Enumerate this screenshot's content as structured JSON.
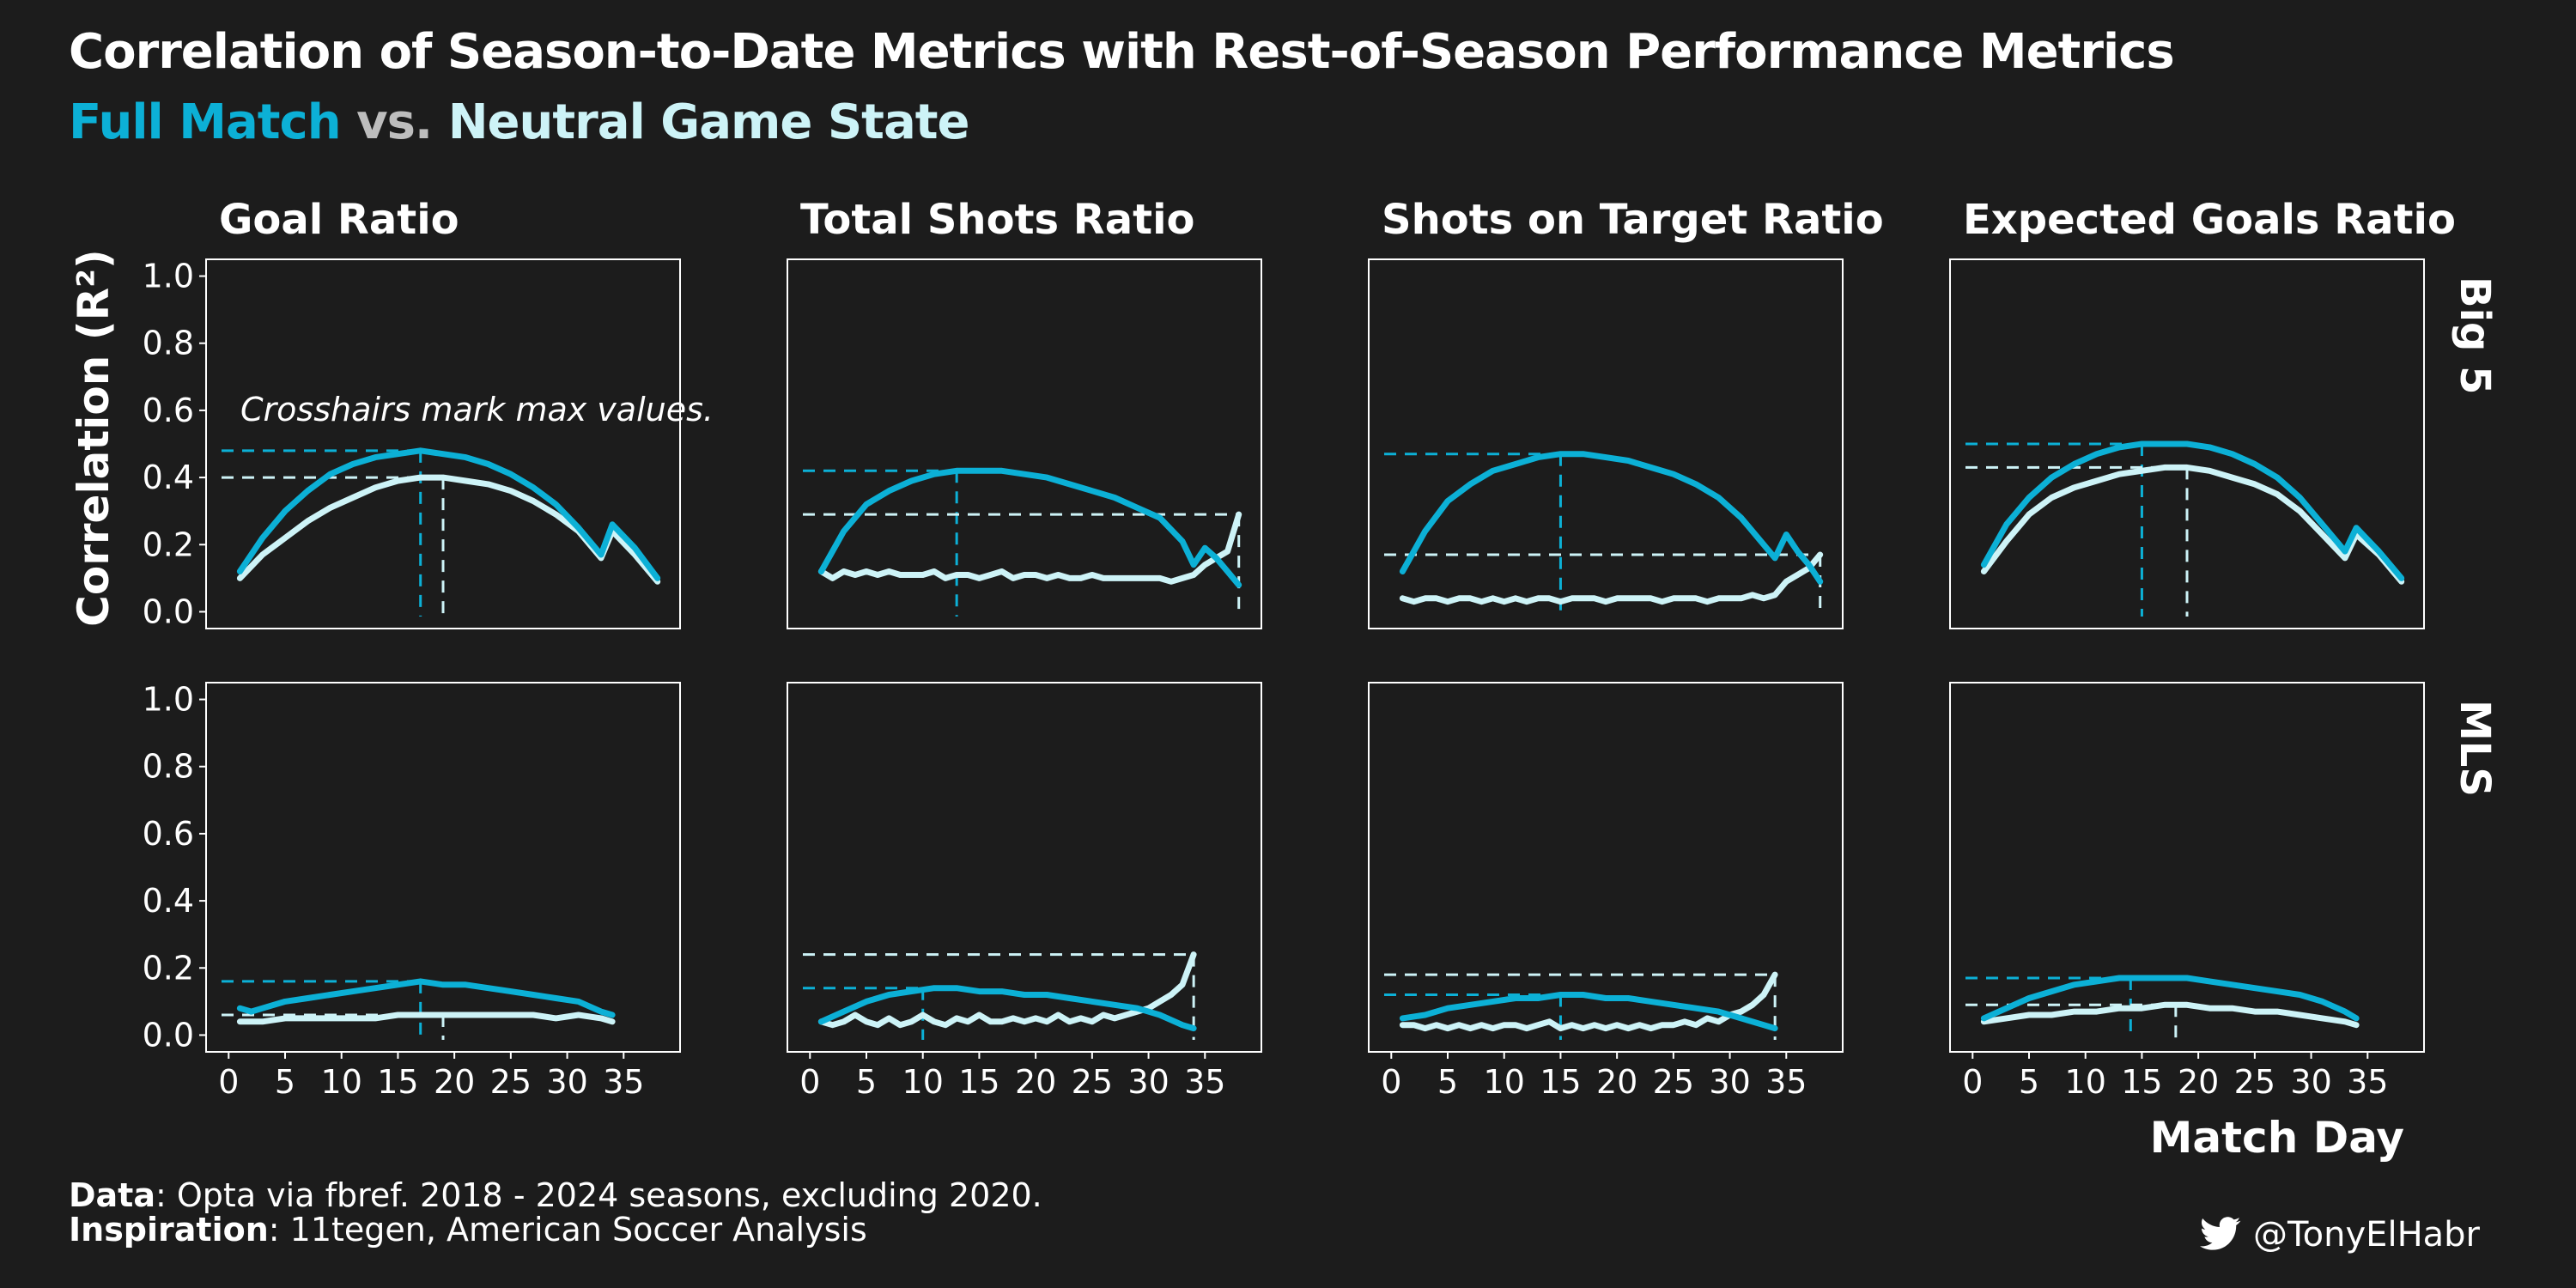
{
  "title": "Correlation of Season-to-Date Metrics with Rest-of-Season Performance Metrics",
  "subtitle": {
    "series_a": "Full Match",
    "vs": "vs.",
    "series_b": "Neutral Game State"
  },
  "footer": {
    "data_label": "Data",
    "data_text": ": Opta via fbref. 2018 - 2024 seasons, excluding 2020.",
    "inspiration_label": "Inspiration",
    "inspiration_text": ": 11tegen, American Soccer Analysis"
  },
  "handle": {
    "icon": "twitter-bird-icon",
    "text": "@TonyElHabr"
  },
  "colors": {
    "background": "#1c1c1c",
    "full_match": "#0cb0d6",
    "neutral": "#cdf3f7",
    "text": "#ffffff"
  },
  "chart_data": {
    "type": "line",
    "ylabel": "Correlation (R²)",
    "xlabel": "Match Day",
    "annotation": "Crosshairs mark max values.",
    "xlim": [
      -2,
      40
    ],
    "ylim": [
      -0.05,
      1.05
    ],
    "x_ticks": [
      0,
      5,
      10,
      15,
      20,
      25,
      30,
      35
    ],
    "x_tick_labels": [
      "0",
      "5",
      "10",
      "15",
      "20",
      "25",
      "30",
      "35"
    ],
    "y_ticks": [
      0.0,
      0.2,
      0.4,
      0.6,
      0.8,
      1.0
    ],
    "y_tick_labels": [
      "0.0",
      "0.2",
      "0.4",
      "0.6",
      "0.8",
      "1.0"
    ],
    "columns": [
      "Goal Ratio",
      "Total Shots Ratio",
      "Shots on Target Ratio",
      "Expected Goals Ratio"
    ],
    "rows": [
      "Big 5",
      "MLS"
    ],
    "panels": [
      {
        "row": "Big 5",
        "column": "Goal Ratio",
        "series": [
          {
            "name": "Full Match",
            "x": [
              1,
              3,
              5,
              7,
              9,
              11,
              13,
              15,
              17,
              19,
              21,
              23,
              25,
              27,
              29,
              31,
              33,
              34,
              36,
              38
            ],
            "y": [
              0.12,
              0.22,
              0.3,
              0.36,
              0.41,
              0.44,
              0.46,
              0.47,
              0.48,
              0.47,
              0.46,
              0.44,
              0.41,
              0.37,
              0.32,
              0.25,
              0.17,
              0.26,
              0.19,
              0.1
            ],
            "max": {
              "x": 17,
              "y": 0.48
            }
          },
          {
            "name": "Neutral Game State",
            "x": [
              1,
              3,
              5,
              7,
              9,
              11,
              13,
              15,
              17,
              19,
              21,
              23,
              25,
              27,
              29,
              31,
              33,
              34,
              36,
              38
            ],
            "y": [
              0.1,
              0.17,
              0.22,
              0.27,
              0.31,
              0.34,
              0.37,
              0.39,
              0.4,
              0.4,
              0.39,
              0.38,
              0.36,
              0.33,
              0.29,
              0.24,
              0.16,
              0.24,
              0.17,
              0.09
            ],
            "max": {
              "x": 19,
              "y": 0.4
            }
          }
        ]
      },
      {
        "row": "Big 5",
        "column": "Total Shots Ratio",
        "series": [
          {
            "name": "Full Match",
            "x": [
              1,
              3,
              5,
              7,
              9,
              11,
              13,
              15,
              17,
              19,
              21,
              23,
              25,
              27,
              29,
              31,
              33,
              34,
              35,
              36,
              37,
              38
            ],
            "y": [
              0.12,
              0.24,
              0.32,
              0.36,
              0.39,
              0.41,
              0.42,
              0.42,
              0.42,
              0.41,
              0.4,
              0.38,
              0.36,
              0.34,
              0.31,
              0.28,
              0.21,
              0.14,
              0.19,
              0.16,
              0.12,
              0.08
            ],
            "max": {
              "x": 13,
              "y": 0.42
            }
          },
          {
            "name": "Neutral Game State",
            "x": [
              1,
              2,
              3,
              4,
              5,
              6,
              7,
              8,
              9,
              10,
              11,
              12,
              13,
              14,
              15,
              16,
              17,
              18,
              19,
              20,
              21,
              22,
              23,
              24,
              25,
              26,
              27,
              28,
              29,
              30,
              31,
              32,
              33,
              34,
              35,
              36,
              37,
              38
            ],
            "y": [
              0.12,
              0.1,
              0.12,
              0.11,
              0.12,
              0.11,
              0.12,
              0.11,
              0.11,
              0.11,
              0.12,
              0.1,
              0.11,
              0.11,
              0.1,
              0.11,
              0.12,
              0.1,
              0.11,
              0.11,
              0.1,
              0.11,
              0.1,
              0.1,
              0.11,
              0.1,
              0.1,
              0.1,
              0.1,
              0.1,
              0.1,
              0.09,
              0.1,
              0.11,
              0.14,
              0.16,
              0.18,
              0.29
            ],
            "max": {
              "x": 38,
              "y": 0.29
            }
          }
        ]
      },
      {
        "row": "Big 5",
        "column": "Shots on Target Ratio",
        "series": [
          {
            "name": "Full Match",
            "x": [
              1,
              3,
              5,
              7,
              9,
              11,
              13,
              15,
              17,
              19,
              21,
              23,
              25,
              27,
              29,
              31,
              33,
              34,
              35,
              36,
              37,
              38
            ],
            "y": [
              0.12,
              0.24,
              0.33,
              0.38,
              0.42,
              0.44,
              0.46,
              0.47,
              0.47,
              0.46,
              0.45,
              0.43,
              0.41,
              0.38,
              0.34,
              0.28,
              0.2,
              0.16,
              0.23,
              0.18,
              0.14,
              0.09
            ],
            "max": {
              "x": 15,
              "y": 0.47
            }
          },
          {
            "name": "Neutral Game State",
            "x": [
              1,
              2,
              3,
              4,
              5,
              6,
              7,
              8,
              9,
              10,
              11,
              12,
              13,
              14,
              15,
              16,
              17,
              18,
              19,
              20,
              21,
              22,
              23,
              24,
              25,
              26,
              27,
              28,
              29,
              30,
              31,
              32,
              33,
              34,
              35,
              36,
              37,
              38
            ],
            "y": [
              0.04,
              0.03,
              0.04,
              0.04,
              0.03,
              0.04,
              0.04,
              0.03,
              0.04,
              0.03,
              0.04,
              0.03,
              0.04,
              0.04,
              0.03,
              0.04,
              0.04,
              0.04,
              0.03,
              0.04,
              0.04,
              0.04,
              0.04,
              0.03,
              0.04,
              0.04,
              0.04,
              0.03,
              0.04,
              0.04,
              0.04,
              0.05,
              0.04,
              0.05,
              0.09,
              0.11,
              0.13,
              0.17
            ],
            "max": {
              "x": 38,
              "y": 0.17
            }
          }
        ]
      },
      {
        "row": "Big 5",
        "column": "Expected Goals Ratio",
        "series": [
          {
            "name": "Full Match",
            "x": [
              1,
              3,
              5,
              7,
              9,
              11,
              13,
              15,
              17,
              19,
              21,
              23,
              25,
              27,
              29,
              31,
              33,
              34,
              36,
              38
            ],
            "y": [
              0.14,
              0.26,
              0.34,
              0.4,
              0.44,
              0.47,
              0.49,
              0.5,
              0.5,
              0.5,
              0.49,
              0.47,
              0.44,
              0.4,
              0.34,
              0.26,
              0.18,
              0.25,
              0.18,
              0.1
            ],
            "max": {
              "x": 15,
              "y": 0.5
            }
          },
          {
            "name": "Neutral Game State",
            "x": [
              1,
              3,
              5,
              7,
              9,
              11,
              13,
              15,
              17,
              19,
              21,
              23,
              25,
              27,
              29,
              31,
              33,
              34,
              36,
              38
            ],
            "y": [
              0.12,
              0.21,
              0.29,
              0.34,
              0.37,
              0.39,
              0.41,
              0.42,
              0.43,
              0.43,
              0.42,
              0.4,
              0.38,
              0.35,
              0.3,
              0.23,
              0.16,
              0.23,
              0.17,
              0.09
            ],
            "max": {
              "x": 19,
              "y": 0.43
            }
          }
        ]
      },
      {
        "row": "MLS",
        "column": "Goal Ratio",
        "series": [
          {
            "name": "Full Match",
            "x": [
              1,
              2,
              3,
              5,
              7,
              9,
              11,
              13,
              15,
              17,
              19,
              21,
              23,
              25,
              27,
              29,
              31,
              33,
              34
            ],
            "y": [
              0.08,
              0.07,
              0.08,
              0.1,
              0.11,
              0.12,
              0.13,
              0.14,
              0.15,
              0.16,
              0.15,
              0.15,
              0.14,
              0.13,
              0.12,
              0.11,
              0.1,
              0.07,
              0.06
            ],
            "max": {
              "x": 17,
              "y": 0.16
            }
          },
          {
            "name": "Neutral Game State",
            "x": [
              1,
              3,
              5,
              7,
              9,
              11,
              13,
              15,
              17,
              19,
              21,
              23,
              25,
              27,
              29,
              31,
              33,
              34
            ],
            "y": [
              0.04,
              0.04,
              0.05,
              0.05,
              0.05,
              0.05,
              0.05,
              0.06,
              0.06,
              0.06,
              0.06,
              0.06,
              0.06,
              0.06,
              0.05,
              0.06,
              0.05,
              0.04
            ],
            "max": {
              "x": 19,
              "y": 0.06
            }
          }
        ]
      },
      {
        "row": "MLS",
        "column": "Total Shots Ratio",
        "series": [
          {
            "name": "Full Match",
            "x": [
              1,
              3,
              5,
              7,
              9,
              11,
              13,
              15,
              17,
              19,
              21,
              23,
              25,
              27,
              29,
              31,
              33,
              34
            ],
            "y": [
              0.04,
              0.07,
              0.1,
              0.12,
              0.13,
              0.14,
              0.14,
              0.13,
              0.13,
              0.12,
              0.12,
              0.11,
              0.1,
              0.09,
              0.08,
              0.06,
              0.03,
              0.02
            ],
            "max": {
              "x": 10,
              "y": 0.14
            }
          },
          {
            "name": "Neutral Game State",
            "x": [
              1,
              2,
              3,
              4,
              5,
              6,
              7,
              8,
              9,
              10,
              11,
              12,
              13,
              14,
              15,
              16,
              17,
              18,
              19,
              20,
              21,
              22,
              23,
              24,
              25,
              26,
              27,
              28,
              29,
              30,
              31,
              32,
              33,
              34
            ],
            "y": [
              0.04,
              0.03,
              0.04,
              0.06,
              0.04,
              0.03,
              0.05,
              0.03,
              0.04,
              0.06,
              0.04,
              0.03,
              0.05,
              0.04,
              0.06,
              0.04,
              0.04,
              0.05,
              0.04,
              0.05,
              0.04,
              0.06,
              0.04,
              0.05,
              0.04,
              0.06,
              0.05,
              0.06,
              0.07,
              0.08,
              0.1,
              0.12,
              0.15,
              0.24
            ],
            "max": {
              "x": 34,
              "y": 0.24
            }
          }
        ]
      },
      {
        "row": "MLS",
        "column": "Shots on Target Ratio",
        "series": [
          {
            "name": "Full Match",
            "x": [
              1,
              3,
              5,
              7,
              9,
              11,
              13,
              15,
              17,
              19,
              21,
              23,
              25,
              27,
              29,
              31,
              33,
              34
            ],
            "y": [
              0.05,
              0.06,
              0.08,
              0.09,
              0.1,
              0.11,
              0.11,
              0.12,
              0.12,
              0.11,
              0.11,
              0.1,
              0.09,
              0.08,
              0.07,
              0.05,
              0.03,
              0.02
            ],
            "max": {
              "x": 15,
              "y": 0.12
            }
          },
          {
            "name": "Neutral Game State",
            "x": [
              1,
              2,
              3,
              4,
              5,
              6,
              7,
              8,
              9,
              10,
              11,
              12,
              13,
              14,
              15,
              16,
              17,
              18,
              19,
              20,
              21,
              22,
              23,
              24,
              25,
              26,
              27,
              28,
              29,
              30,
              31,
              32,
              33,
              34
            ],
            "y": [
              0.03,
              0.03,
              0.02,
              0.03,
              0.02,
              0.03,
              0.02,
              0.03,
              0.02,
              0.03,
              0.03,
              0.02,
              0.03,
              0.04,
              0.02,
              0.03,
              0.02,
              0.03,
              0.02,
              0.03,
              0.02,
              0.03,
              0.02,
              0.03,
              0.03,
              0.04,
              0.03,
              0.05,
              0.04,
              0.06,
              0.07,
              0.09,
              0.12,
              0.18
            ],
            "max": {
              "x": 34,
              "y": 0.18
            }
          }
        ]
      },
      {
        "row": "MLS",
        "column": "Expected Goals Ratio",
        "series": [
          {
            "name": "Full Match",
            "x": [
              1,
              3,
              5,
              7,
              9,
              11,
              13,
              15,
              17,
              19,
              21,
              23,
              25,
              27,
              29,
              31,
              33,
              34
            ],
            "y": [
              0.05,
              0.08,
              0.11,
              0.13,
              0.15,
              0.16,
              0.17,
              0.17,
              0.17,
              0.17,
              0.16,
              0.15,
              0.14,
              0.13,
              0.12,
              0.1,
              0.07,
              0.05
            ],
            "max": {
              "x": 14,
              "y": 0.17
            }
          },
          {
            "name": "Neutral Game State",
            "x": [
              1,
              3,
              5,
              7,
              9,
              11,
              13,
              15,
              17,
              19,
              21,
              23,
              25,
              27,
              29,
              31,
              33,
              34
            ],
            "y": [
              0.04,
              0.05,
              0.06,
              0.06,
              0.07,
              0.07,
              0.08,
              0.08,
              0.09,
              0.09,
              0.08,
              0.08,
              0.07,
              0.07,
              0.06,
              0.05,
              0.04,
              0.03
            ],
            "max": {
              "x": 18,
              "y": 0.09
            }
          }
        ]
      }
    ]
  }
}
